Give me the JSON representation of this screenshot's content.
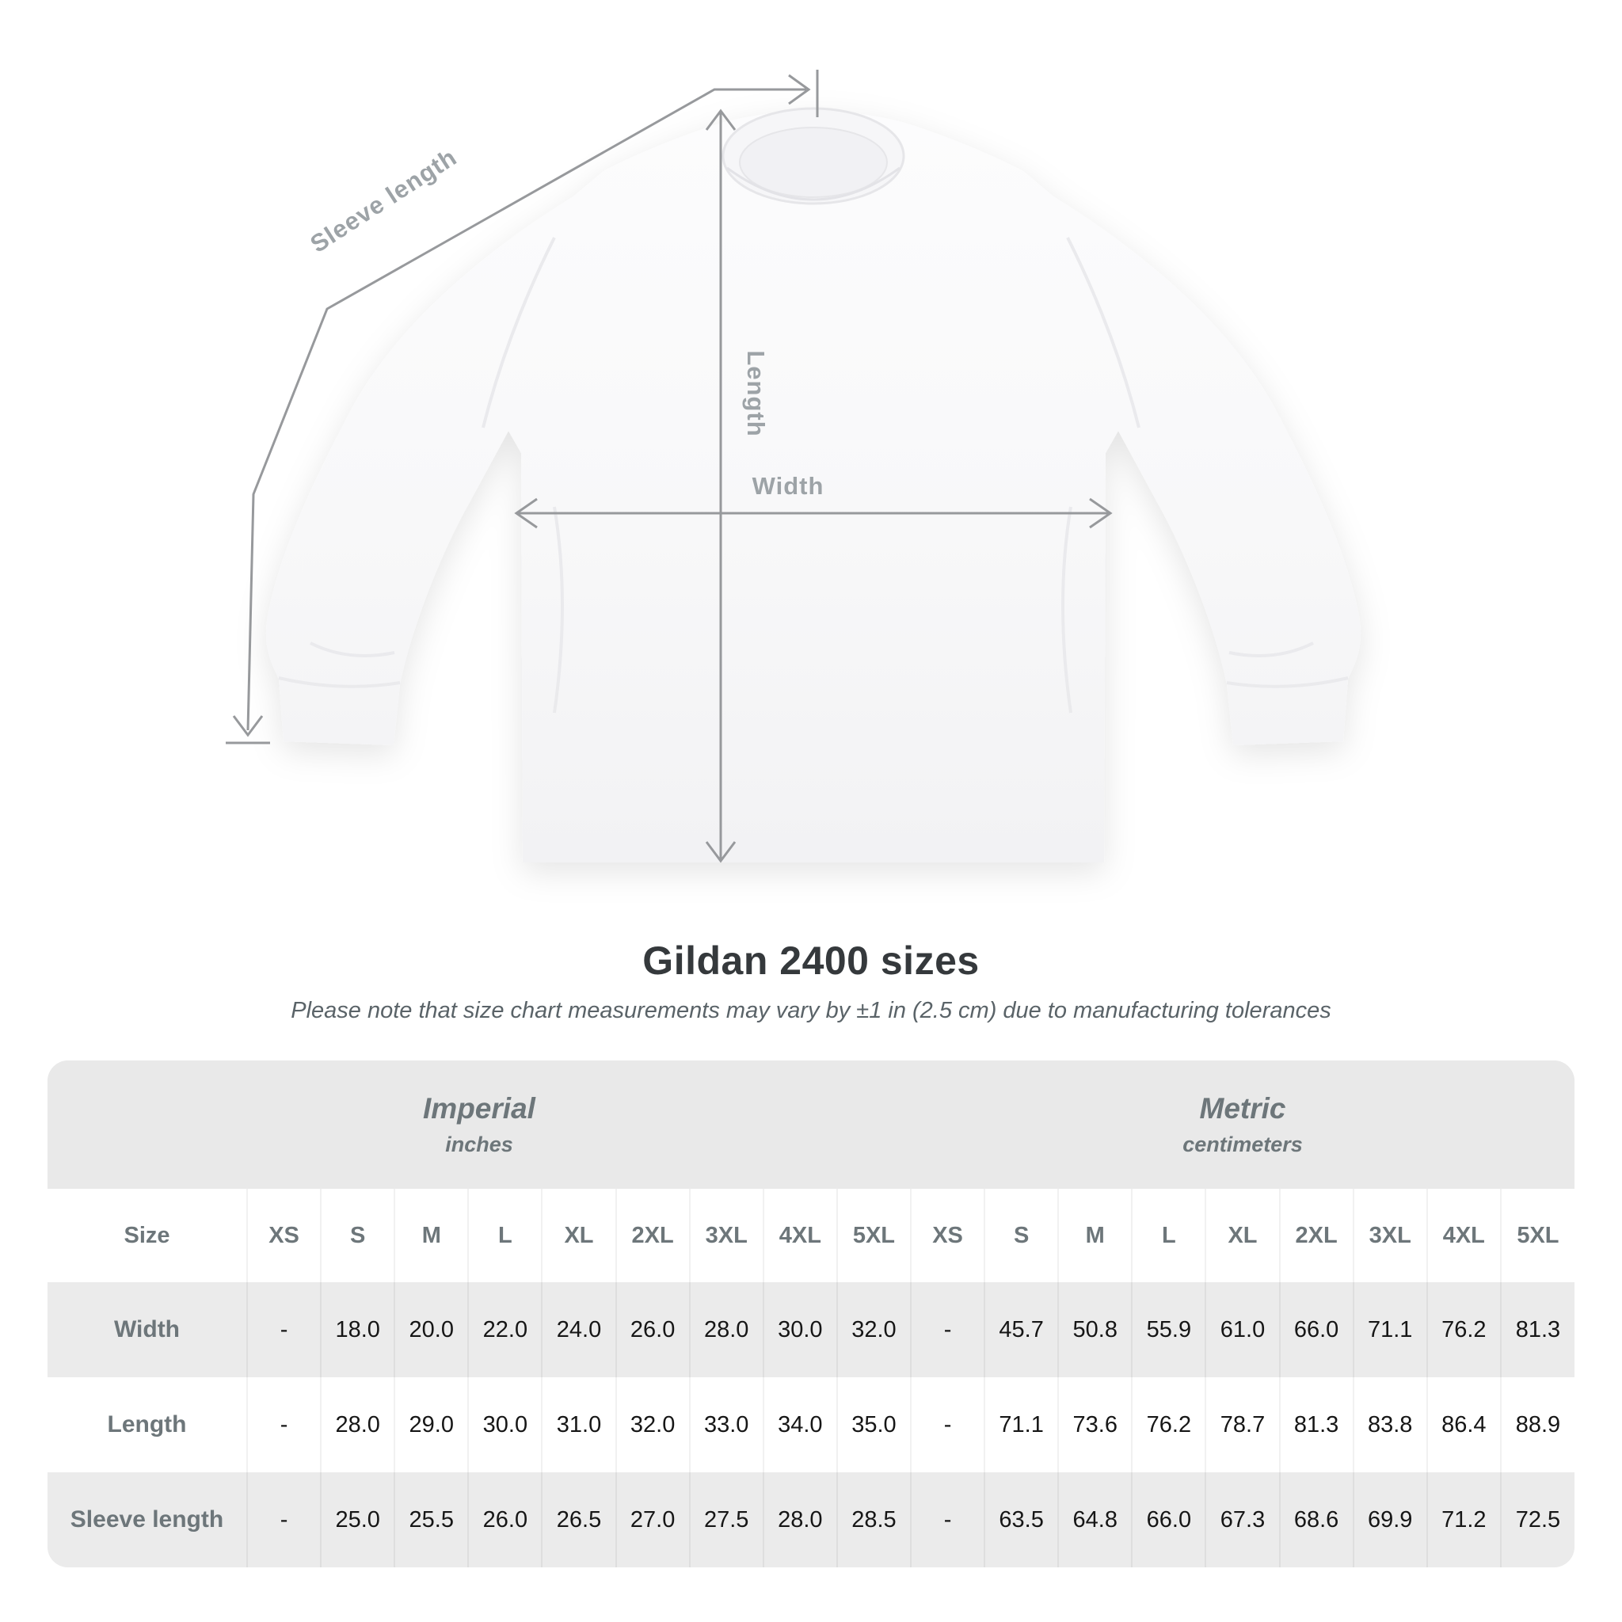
{
  "diagram": {
    "sleeve_length_label": "Sleeve length",
    "length_label": "Length",
    "width_label": "Width"
  },
  "title": "Gildan 2400 sizes",
  "note": "Please note that size chart measurements may vary by ±1 in (2.5 cm) due to manufacturing tolerances",
  "chart_data": {
    "type": "table",
    "title": "Gildan 2400 sizes",
    "unit_groups": [
      {
        "label": "Imperial",
        "units": "inches"
      },
      {
        "label": "Metric",
        "units": "centimeters"
      }
    ],
    "size_header": "Size",
    "sizes": [
      "XS",
      "S",
      "M",
      "L",
      "XL",
      "2XL",
      "3XL",
      "4XL",
      "5XL"
    ],
    "rows": [
      {
        "label": "Width",
        "imperial": [
          "-",
          "18.0",
          "20.0",
          "22.0",
          "24.0",
          "26.0",
          "28.0",
          "30.0",
          "32.0"
        ],
        "metric": [
          "-",
          "45.7",
          "50.8",
          "55.9",
          "61.0",
          "66.0",
          "71.1",
          "76.2",
          "81.3"
        ]
      },
      {
        "label": "Length",
        "imperial": [
          "-",
          "28.0",
          "29.0",
          "30.0",
          "31.0",
          "32.0",
          "33.0",
          "34.0",
          "35.0"
        ],
        "metric": [
          "-",
          "71.1",
          "73.6",
          "76.2",
          "78.7",
          "81.3",
          "83.8",
          "86.4",
          "88.9"
        ]
      },
      {
        "label": "Sleeve length",
        "imperial": [
          "-",
          "25.0",
          "25.5",
          "26.0",
          "26.5",
          "27.0",
          "27.5",
          "28.0",
          "28.5"
        ],
        "metric": [
          "-",
          "63.5",
          "64.8",
          "66.0",
          "67.3",
          "68.6",
          "69.9",
          "71.2",
          "72.5"
        ]
      }
    ]
  },
  "colors": {
    "measure_line": "#97999c",
    "measure_label": "#9da3a7",
    "table_band": "#e9e9e9",
    "table_stripe": "#ebebeb",
    "value_text": "#161616",
    "header_text": "#6d767a"
  }
}
